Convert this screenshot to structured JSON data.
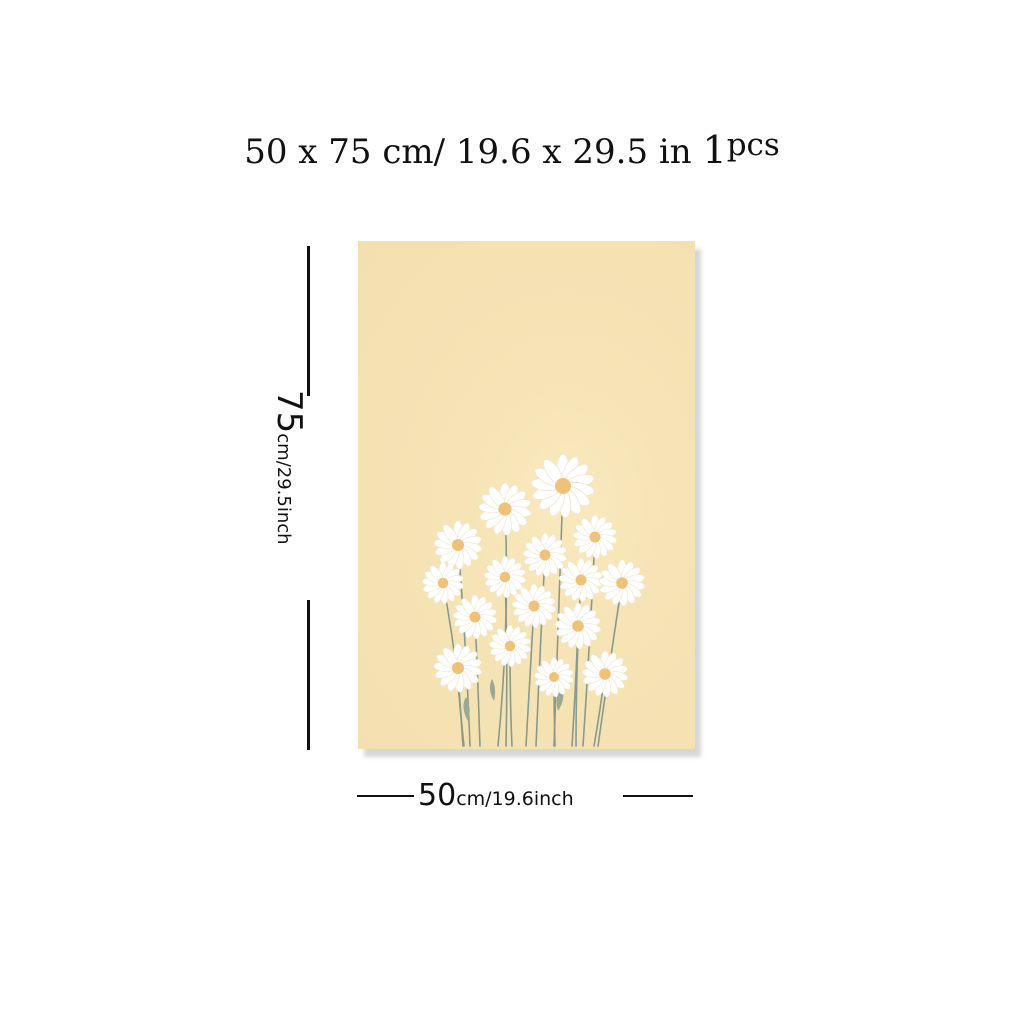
{
  "header": {
    "dims": "50 x 75",
    "cm_unit": "cm/",
    "inch_dims": "19.6  x  29.5",
    "inch_unit": "in",
    "qty_num": "1",
    "qty_unit": "pcs"
  },
  "height_label": {
    "value": "75",
    "unit": "cm/29.5inch"
  },
  "width_label": {
    "value": "50",
    "unit": "cm/19.6inch"
  },
  "colors": {
    "poster_background": "#f3e0b0",
    "petal": "#ffffff",
    "flower_center": "#efc27a",
    "stem": "#8a9a8a"
  }
}
